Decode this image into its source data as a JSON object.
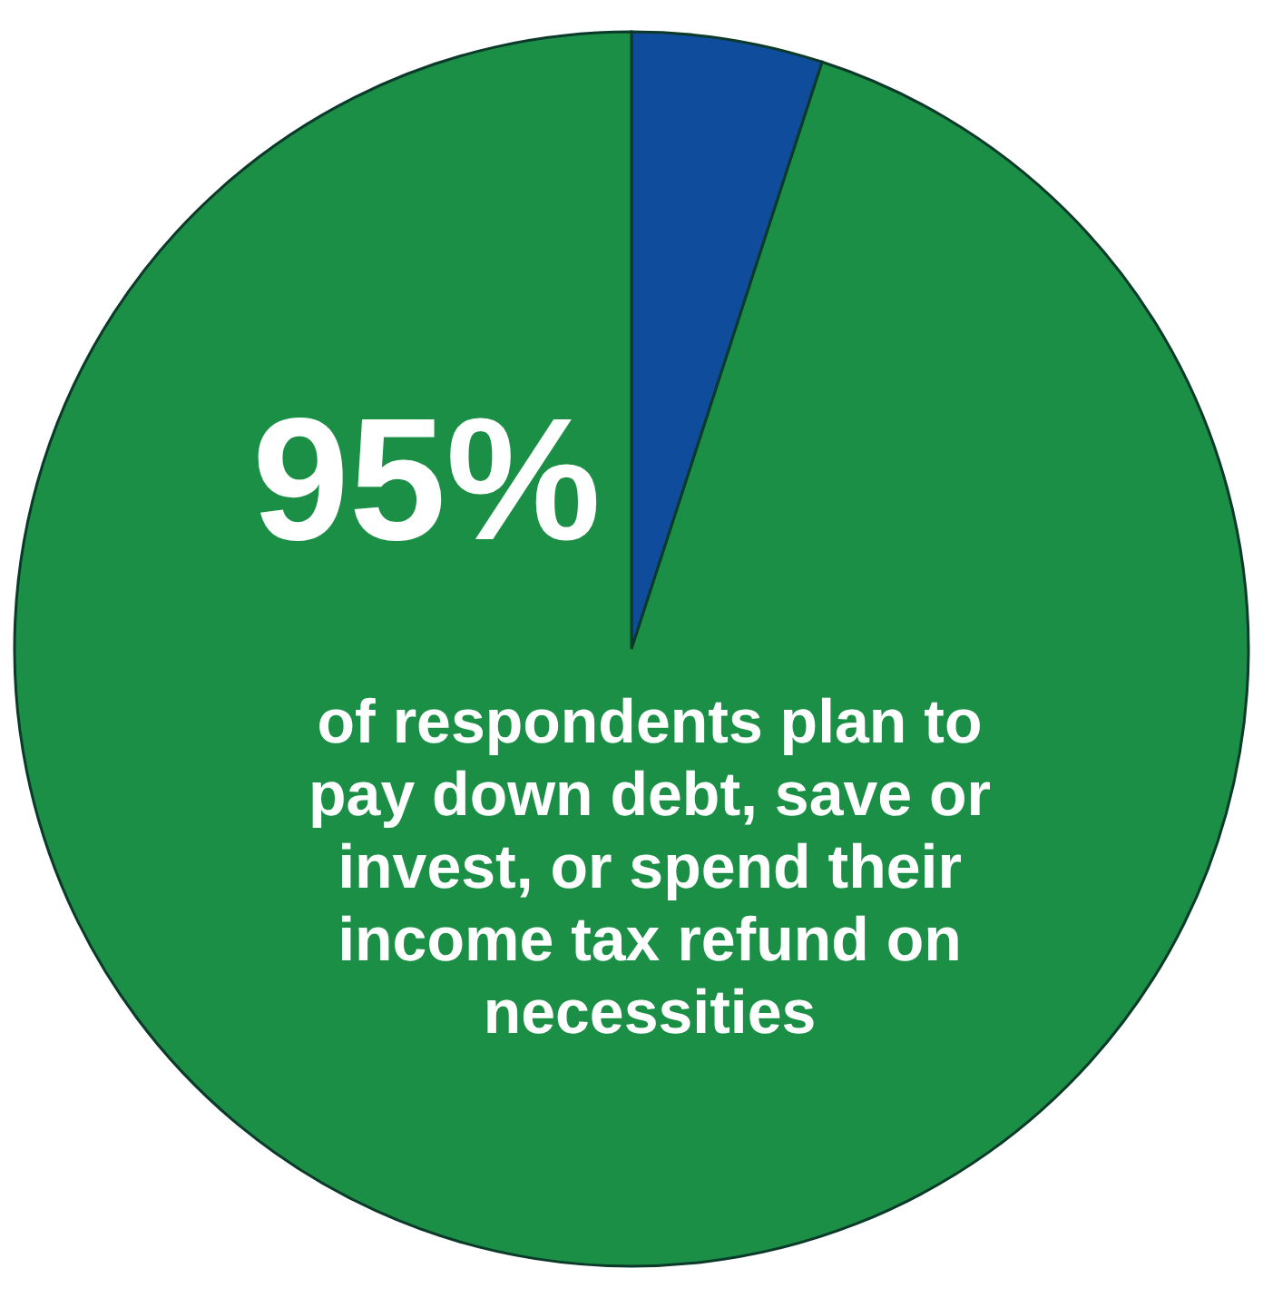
{
  "chart_data": {
    "type": "pie",
    "categories": [
      null,
      null
    ],
    "values": [
      5,
      95
    ],
    "colors": [
      "#0f4c9c",
      "#1a8f45"
    ],
    "value_labels": [
      null,
      "95%"
    ],
    "annotations": [
      "of respondents plan to pay down debt, save or invest, or spend their income tax refund on necessities"
    ]
  }
}
